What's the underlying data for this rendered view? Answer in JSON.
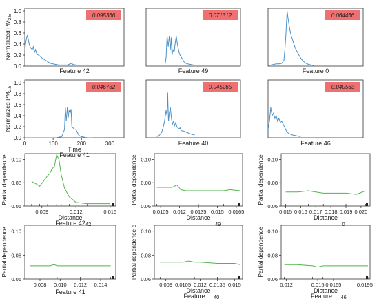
{
  "time_panels": [
    {
      "feature_label": "Feature 42",
      "badge": "0.095366",
      "ylabel": "Normalized PM",
      "yticks": [
        "0.0",
        "0.2",
        "0.4",
        "0.6",
        "0.8",
        "1.0"
      ],
      "xticks": [],
      "xlim": [
        0,
        350
      ],
      "ylim": [
        0,
        1.05
      ],
      "x": [
        0,
        4,
        8,
        12,
        16,
        20,
        26,
        30,
        34,
        38,
        42,
        48,
        54,
        60,
        66,
        72,
        78,
        84,
        90,
        100,
        110,
        120,
        130,
        150,
        165,
        170,
        180,
        185
      ],
      "y": [
        0.3,
        0.45,
        0.55,
        0.5,
        0.38,
        0.34,
        0.3,
        0.35,
        0.25,
        0.3,
        0.22,
        0.2,
        0.18,
        0.15,
        0.13,
        0.11,
        0.09,
        0.07,
        0.05,
        0.04,
        0.03,
        0.02,
        0.02,
        0.02,
        0.05,
        0.03,
        0.02,
        0.02
      ]
    },
    {
      "feature_label": "Feature 49",
      "badge": "0.071312",
      "ylabel": "",
      "yticks": [],
      "xticks": [],
      "xlim": [
        0,
        350
      ],
      "ylim": [
        0,
        1.05
      ],
      "x": [
        70,
        74,
        78,
        82,
        86,
        90,
        93,
        96,
        100,
        104,
        108,
        112,
        116,
        120,
        124,
        128,
        132,
        136,
        140,
        148,
        155,
        165,
        175,
        180
      ],
      "y": [
        0.02,
        0.15,
        0.55,
        0.35,
        0.55,
        0.3,
        0.52,
        0.2,
        0.3,
        0.25,
        0.42,
        0.55,
        0.4,
        0.3,
        0.22,
        0.18,
        0.15,
        0.12,
        0.08,
        0.05,
        0.04,
        0.03,
        0.02,
        0.02
      ]
    },
    {
      "feature_label": "Feature 0",
      "badge": "0.064466",
      "ylabel": "",
      "yticks": [],
      "xticks": [],
      "xlim": [
        0,
        350
      ],
      "ylim": [
        0,
        1.05
      ],
      "x": [
        0,
        10,
        20,
        30,
        40,
        50,
        58,
        62,
        66,
        70,
        74,
        78,
        82,
        86,
        90,
        95,
        100,
        108,
        116,
        124,
        132,
        140,
        150,
        160,
        170
      ],
      "y": [
        0.01,
        0.02,
        0.03,
        0.04,
        0.04,
        0.05,
        0.1,
        0.3,
        0.6,
        1.0,
        0.85,
        0.72,
        0.62,
        0.54,
        0.48,
        0.4,
        0.33,
        0.25,
        0.18,
        0.12,
        0.08,
        0.05,
        0.03,
        0.02,
        0.01
      ]
    },
    {
      "feature_label": "Feature 41",
      "badge": "0.046732",
      "ylabel": "Normalized PM",
      "yticks": [
        "0.0",
        "0.2",
        "0.4",
        "0.6",
        "0.8",
        "1.0"
      ],
      "xticks": [
        "0",
        "100",
        "200",
        "300"
      ],
      "xlabel": "Time",
      "xlim": [
        0,
        350
      ],
      "ylim": [
        0,
        1.05
      ],
      "x": [
        0,
        40,
        80,
        110,
        130,
        140,
        143,
        146,
        150,
        153,
        156,
        160,
        163,
        166,
        170,
        175,
        180,
        185,
        190,
        195,
        200,
        210,
        220,
        240
      ],
      "y": [
        0.0,
        0.0,
        0.0,
        0.0,
        0.02,
        0.15,
        0.55,
        0.3,
        0.55,
        0.35,
        0.5,
        0.45,
        0.52,
        0.2,
        0.18,
        0.16,
        0.15,
        0.1,
        0.05,
        0.03,
        0.02,
        0.01,
        0.0,
        0.0
      ]
    },
    {
      "feature_label": "Feature 40",
      "badge": "0.045265",
      "ylabel": "",
      "yticks": [],
      "xticks": [],
      "xlim": [
        0,
        350
      ],
      "ylim": [
        0,
        1.05
      ],
      "x": [
        40,
        50,
        58,
        64,
        70,
        74,
        78,
        80,
        83,
        86,
        90,
        94,
        98,
        102,
        106,
        110,
        114,
        118,
        122,
        126,
        130,
        140,
        150,
        160,
        170,
        180
      ],
      "y": [
        0.02,
        0.05,
        0.1,
        0.2,
        0.35,
        0.5,
        0.4,
        0.82,
        0.3,
        0.45,
        0.55,
        0.35,
        0.25,
        0.3,
        0.22,
        0.28,
        0.2,
        0.18,
        0.16,
        0.18,
        0.13,
        0.12,
        0.1,
        0.08,
        0.06,
        0.05
      ]
    },
    {
      "feature_label": "Feature 46",
      "badge": "0.040563",
      "ylabel": "",
      "yticks": [],
      "xticks": [],
      "xlim": [
        0,
        350
      ],
      "ylim": [
        0,
        1.05
      ],
      "x": [
        0,
        5,
        10,
        15,
        20,
        25,
        30,
        35,
        40,
        45,
        50,
        55,
        60,
        65,
        70,
        80,
        90,
        100,
        110,
        120
      ],
      "y": [
        0.15,
        0.3,
        0.55,
        0.4,
        0.45,
        0.35,
        0.4,
        0.3,
        0.35,
        0.28,
        0.3,
        0.25,
        0.2,
        0.15,
        0.1,
        0.07,
        0.05,
        0.04,
        0.03,
        0.02
      ]
    }
  ],
  "pdp_panels": [
    {
      "ylabel": "Partial dependence",
      "xlabel": "Distance",
      "feature_label": "Feature 42",
      "feature_sub": "42",
      "yticks": [
        "0.06",
        "0.08",
        "0.10"
      ],
      "ylim": [
        0.06,
        0.105
      ],
      "xticks": [
        "0.009",
        "0.012",
        "0.015"
      ],
      "xlim": [
        0.0075,
        0.0155
      ],
      "x": [
        0.0081,
        0.0085,
        0.0088,
        0.0092,
        0.0095,
        0.0097,
        0.0099,
        0.0101,
        0.0103,
        0.0105,
        0.0107,
        0.011,
        0.0114,
        0.012,
        0.013,
        0.014,
        0.015
      ],
      "y": [
        0.081,
        0.079,
        0.077,
        0.082,
        0.086,
        0.088,
        0.092,
        0.094,
        0.104,
        0.1,
        0.087,
        0.075,
        0.068,
        0.063,
        0.062,
        0.062,
        0.062
      ]
    },
    {
      "ylabel": "Partial dependence",
      "xlabel": "Distance",
      "feature_label": "",
      "feature_sub": "49",
      "yticks": [
        "0.06",
        "0.08",
        "0.10"
      ],
      "ylim": [
        0.06,
        0.105
      ],
      "xticks": [
        "0.0105",
        "0.012",
        "0.0135",
        "0.015",
        "0.0165"
      ],
      "xlim": [
        0.01,
        0.017
      ],
      "x": [
        0.0102,
        0.0108,
        0.0114,
        0.0118,
        0.0121,
        0.0125,
        0.0135,
        0.0145,
        0.0155,
        0.016,
        0.0168
      ],
      "y": [
        0.076,
        0.076,
        0.076,
        0.078,
        0.074,
        0.073,
        0.073,
        0.073,
        0.073,
        0.074,
        0.073
      ]
    },
    {
      "ylabel": "Partial dependence",
      "xlabel": "Distance",
      "feature_label": "",
      "feature_sub": "0",
      "yticks": [
        "0.06",
        "0.08",
        "0.10"
      ],
      "ylim": [
        0.06,
        0.105
      ],
      "xticks": [
        "0.015",
        "0.016",
        "0.017",
        "0.018",
        "0.019",
        "0.020"
      ],
      "xlim": [
        0.0147,
        0.0206
      ],
      "x": [
        0.015,
        0.0158,
        0.0165,
        0.017,
        0.0175,
        0.0182,
        0.019,
        0.0197,
        0.0203
      ],
      "y": [
        0.072,
        0.072,
        0.073,
        0.072,
        0.071,
        0.071,
        0.071,
        0.07,
        0.073
      ]
    },
    {
      "ylabel": "Partial dependence",
      "xlabel": "",
      "feature_label": "Feature 41",
      "feature_sub": "",
      "yticks": [
        "0.06",
        "0.08",
        "0.10"
      ],
      "ylim": [
        0.06,
        0.105
      ],
      "xticks": [
        "0.008",
        "0.010",
        "0.012",
        "0.014"
      ],
      "xlim": [
        0.0065,
        0.0155
      ],
      "x": [
        0.007,
        0.008,
        0.009,
        0.0094,
        0.0097,
        0.0105,
        0.012,
        0.014,
        0.015
      ],
      "y": [
        0.071,
        0.071,
        0.071,
        0.072,
        0.071,
        0.071,
        0.071,
        0.071,
        0.071
      ]
    },
    {
      "ylabel": "Partial dependence e",
      "xlabel": "Distance",
      "feature_label": "Feature",
      "feature_sub": "40",
      "yticks": [
        "0.06",
        "0.08",
        "0.10"
      ],
      "ylim": [
        0.06,
        0.105
      ],
      "xticks": [
        "0.009",
        "0.0105",
        "0.012",
        "0.0135",
        "0.015"
      ],
      "xlim": [
        0.008,
        0.0157
      ],
      "x": [
        0.0085,
        0.0095,
        0.0105,
        0.011,
        0.0115,
        0.012,
        0.0135,
        0.015,
        0.0155
      ],
      "y": [
        0.074,
        0.074,
        0.074,
        0.075,
        0.074,
        0.074,
        0.073,
        0.073,
        0.072
      ]
    },
    {
      "ylabel": "Partial dependence",
      "xlabel": "Distance",
      "feature_label": "Feature",
      "feature_sub": "46",
      "yticks": [
        "0.06",
        "0.08",
        "0.10"
      ],
      "ylim": [
        0.06,
        0.105
      ],
      "xticks": [
        "0.012",
        "0.015",
        "0.0165",
        "0.0195"
      ],
      "xlim": [
        0.0115,
        0.02
      ],
      "x": [
        0.0118,
        0.013,
        0.0145,
        0.015,
        0.0155,
        0.0165,
        0.018,
        0.019,
        0.0198
      ],
      "y": [
        0.072,
        0.072,
        0.071,
        0.07,
        0.071,
        0.071,
        0.071,
        0.071,
        0.071
      ]
    }
  ],
  "colors": {
    "time_line": "#4a90c8",
    "pdp_line": "#4db848",
    "badge_bg": "#ee7070",
    "axis": "#333333"
  }
}
